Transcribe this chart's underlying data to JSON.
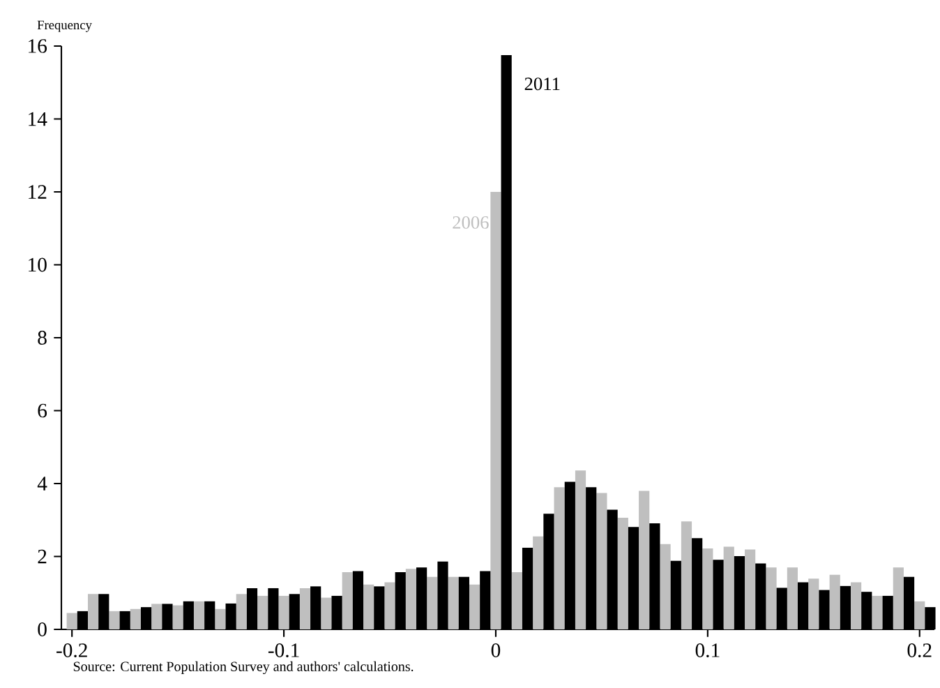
{
  "chart_data": {
    "type": "bar",
    "ylabel": "Frequency",
    "annotations": [
      "Source: Current Population Survey and authors' calculations."
    ],
    "x": [
      -0.2,
      -0.19,
      -0.18,
      -0.17,
      -0.16,
      -0.15,
      -0.14,
      -0.13,
      -0.12,
      -0.11,
      -0.1,
      -0.09,
      -0.08,
      -0.07,
      -0.06,
      -0.05,
      -0.04,
      -0.03,
      -0.02,
      -0.01,
      0,
      0.01,
      0.02,
      0.03,
      0.04,
      0.05,
      0.06,
      0.07,
      0.08,
      0.09,
      0.1,
      0.11,
      0.12,
      0.13,
      0.14,
      0.15,
      0.16,
      0.17,
      0.18,
      0.19,
      0.2
    ],
    "series": [
      {
        "name": "2006",
        "color": "#bfbfbf",
        "values": [
          0.45,
          0.97,
          0.5,
          0.56,
          0.7,
          0.66,
          0.77,
          0.56,
          0.97,
          0.92,
          0.92,
          1.13,
          0.87,
          1.57,
          1.23,
          1.29,
          1.66,
          1.44,
          1.44,
          1.23,
          12,
          1.57,
          2.55,
          3.9,
          4.36,
          3.74,
          3.06,
          3.8,
          2.34,
          2.96,
          2.22,
          2.27,
          2.19,
          1.7,
          1.7,
          1.39,
          1.5,
          1.29,
          0.92,
          1.7,
          0.77
        ]
      },
      {
        "name": "2011",
        "color": "#000000",
        "values": [
          0.5,
          0.97,
          0.5,
          0.61,
          0.7,
          0.77,
          0.77,
          0.71,
          1.13,
          1.13,
          0.97,
          1.18,
          0.92,
          1.6,
          1.18,
          1.57,
          1.7,
          1.86,
          1.44,
          1.6,
          15.75,
          2.24,
          3.17,
          4.05,
          3.9,
          3.28,
          2.81,
          2.91,
          1.88,
          2.5,
          1.91,
          2.01,
          1.81,
          1.14,
          1.29,
          1.08,
          1.19,
          1.03,
          0.92,
          1.44,
          0.61
        ]
      }
    ],
    "xlim": [
      -0.205,
      0.207
    ],
    "ylim": [
      0,
      16
    ],
    "xticks": [
      -0.2,
      -0.1,
      0,
      0.1,
      0.2
    ],
    "yticks": [
      0,
      2,
      4,
      6,
      8,
      10,
      12,
      14,
      16
    ],
    "grid": false,
    "legend": false
  }
}
